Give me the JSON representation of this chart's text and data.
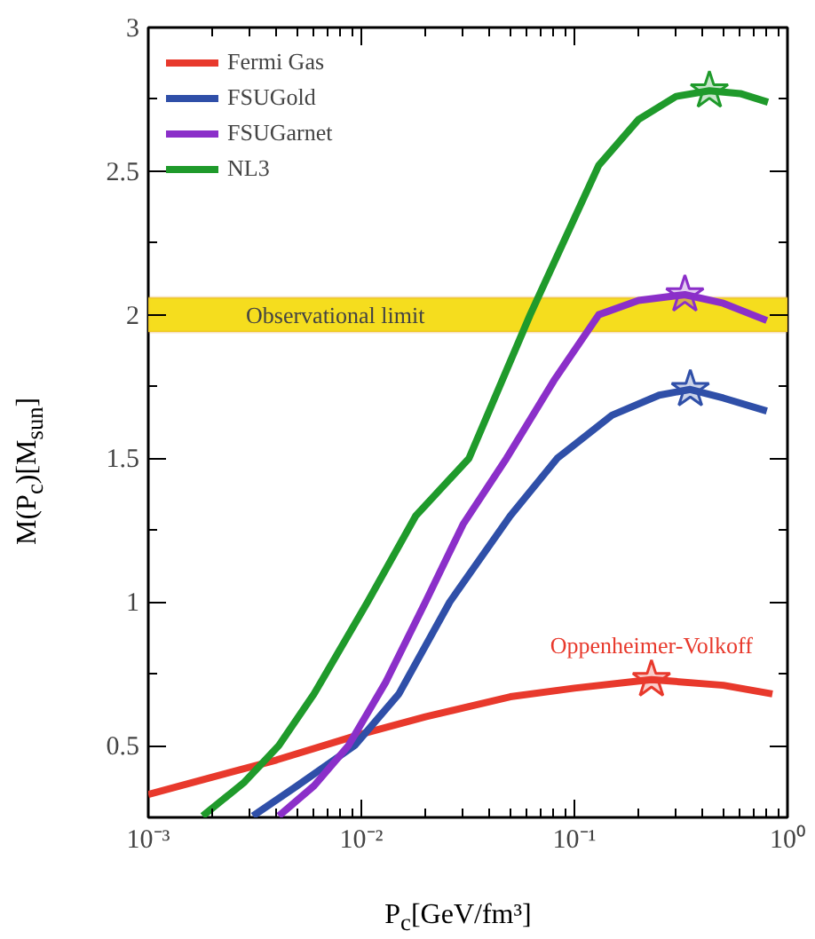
{
  "chart_data": {
    "type": "line",
    "xlabel": "P$_{c}$[GeV/fm³]",
    "ylabel": "M(P$_{c}$)[M$_{sun}$]",
    "log": "x",
    "xlim": [
      0.001,
      1
    ],
    "xticks": [
      {
        "value": 0.001,
        "label": "10⁻³"
      },
      {
        "value": 0.01,
        "label": "10⁻²"
      },
      {
        "value": 0.1,
        "label": "10⁻¹"
      },
      {
        "value": 1,
        "label": "10⁰"
      }
    ],
    "ylim": [
      0.25,
      3
    ],
    "yticks": [
      0.5,
      1,
      1.5,
      2,
      2.5,
      3
    ],
    "grid": false,
    "legend": "top left",
    "line_style": "solid",
    "marker": "none",
    "series": [
      {
        "name": "Fermi Gas",
        "color": "#e8392c",
        "x": [
          0.001,
          0.002,
          0.004,
          0.01,
          0.02,
          0.05,
          0.1,
          0.23,
          0.5,
          0.85
        ],
        "values": [
          0.33,
          0.39,
          0.45,
          0.54,
          0.6,
          0.67,
          0.7,
          0.73,
          0.71,
          0.68
        ]
      },
      {
        "name": "FSUGold",
        "color": "#2f4fa8",
        "x": [
          0.0031,
          0.005,
          0.0093,
          0.015,
          0.026,
          0.05,
          0.083,
          0.15,
          0.25,
          0.35,
          0.5,
          0.8
        ],
        "values": [
          0.255,
          0.36,
          0.5,
          0.68,
          1.0,
          1.3,
          1.5,
          1.65,
          1.72,
          1.74,
          1.71,
          1.665
        ]
      },
      {
        "name": "FSUGarnet",
        "color": "#8b2fc9",
        "x": [
          0.0041,
          0.006,
          0.0087,
          0.013,
          0.02,
          0.03,
          0.048,
          0.08,
          0.13,
          0.2,
          0.33,
          0.5,
          0.8
        ],
        "values": [
          0.255,
          0.36,
          0.5,
          0.72,
          1.0,
          1.27,
          1.5,
          1.77,
          2.0,
          2.05,
          2.07,
          2.04,
          1.98
        ]
      },
      {
        "name": "NL3",
        "color": "#1f9a2b",
        "x": [
          0.0018,
          0.0028,
          0.0041,
          0.006,
          0.0107,
          0.018,
          0.032,
          0.062,
          0.13,
          0.2,
          0.3,
          0.43,
          0.6,
          0.81
        ],
        "values": [
          0.255,
          0.37,
          0.5,
          0.68,
          1.0,
          1.3,
          1.5,
          2.0,
          2.52,
          2.68,
          2.76,
          2.78,
          2.77,
          2.74
        ]
      },
      {
        "type": "scatter",
        "marker": "star",
        "color": "#e8392c",
        "x": [
          0.23
        ],
        "values": [
          0.73
        ]
      },
      {
        "type": "scatter",
        "marker": "star",
        "color": "#2f4fa8",
        "x": [
          0.35
        ],
        "values": [
          1.74
        ]
      },
      {
        "type": "scatter",
        "marker": "star",
        "color": "#8b2fc9",
        "x": [
          0.33
        ],
        "values": [
          2.07
        ]
      },
      {
        "type": "scatter",
        "marker": "star",
        "color": "#1f9a2b",
        "x": [
          0.43
        ],
        "values": [
          2.78
        ]
      }
    ],
    "bands": [
      {
        "axis": "y",
        "from": 1.94,
        "to": 2.06,
        "label": "Observational limit",
        "color": "#f5dd1e"
      }
    ],
    "annotations": [
      {
        "text": "Oppenheimer-Volkoff",
        "x": 0.23,
        "y": 0.73
      }
    ]
  }
}
